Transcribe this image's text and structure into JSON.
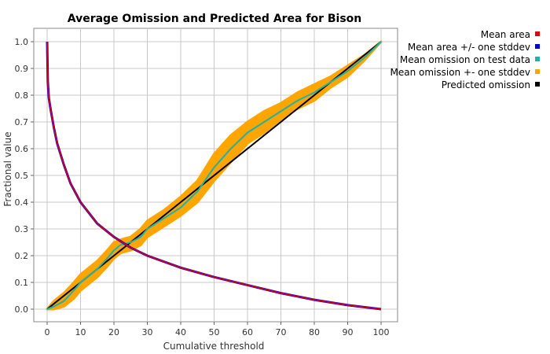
{
  "chart_data": {
    "type": "line",
    "title": "Average Omission and Predicted Area for Bison",
    "xlabel": "Cumulative threshold",
    "ylabel": "Fractional value",
    "xlim": [
      0,
      100
    ],
    "ylim": [
      0,
      1
    ],
    "xticks": [
      0,
      10,
      20,
      30,
      40,
      50,
      60,
      70,
      80,
      90,
      100
    ],
    "yticks": [
      0.0,
      0.1,
      0.2,
      0.3,
      0.4,
      0.5,
      0.6,
      0.7,
      0.8,
      0.9,
      1.0
    ],
    "grid": true,
    "legend_position": "right",
    "series": [
      {
        "name": "Mean area",
        "color": "#e8000b",
        "x": [
          0,
          0.2,
          0.5,
          1,
          2,
          3,
          5,
          7,
          10,
          15,
          20,
          25,
          30,
          40,
          50,
          60,
          70,
          80,
          90,
          100
        ],
        "y": [
          1.0,
          0.85,
          0.79,
          0.75,
          0.68,
          0.62,
          0.54,
          0.47,
          0.4,
          0.32,
          0.27,
          0.23,
          0.2,
          0.155,
          0.12,
          0.09,
          0.06,
          0.035,
          0.015,
          0.0
        ]
      },
      {
        "name": "Mean area +/- one stddev",
        "color": "#0000dd",
        "x": [
          0,
          0.2,
          0.5,
          1,
          2,
          3,
          5,
          7,
          10,
          15,
          20,
          25,
          30,
          40,
          50,
          60,
          70,
          80,
          90,
          100
        ],
        "y": [
          1.0,
          0.85,
          0.79,
          0.75,
          0.68,
          0.62,
          0.54,
          0.47,
          0.4,
          0.32,
          0.27,
          0.23,
          0.2,
          0.155,
          0.12,
          0.09,
          0.06,
          0.035,
          0.015,
          0.0
        ]
      },
      {
        "name": "Mean omission on test data",
        "color": "#20b2aa",
        "x": [
          0,
          2,
          5,
          8,
          10,
          12,
          15,
          18,
          20,
          22,
          25,
          28,
          30,
          35,
          40,
          45,
          50,
          55,
          60,
          65,
          70,
          75,
          80,
          85,
          90,
          95,
          100
        ],
        "y": [
          0.0,
          0.01,
          0.03,
          0.07,
          0.1,
          0.12,
          0.15,
          0.19,
          0.22,
          0.24,
          0.25,
          0.27,
          0.3,
          0.34,
          0.38,
          0.44,
          0.53,
          0.6,
          0.66,
          0.7,
          0.74,
          0.78,
          0.81,
          0.85,
          0.89,
          0.94,
          1.0
        ]
      },
      {
        "name": "Mean omission +- one stddev",
        "color": "#ffa500",
        "x": [
          0,
          2,
          5,
          8,
          10,
          12,
          15,
          18,
          20,
          22,
          25,
          28,
          30,
          35,
          40,
          45,
          50,
          55,
          60,
          65,
          70,
          75,
          80,
          85,
          90,
          95,
          100
        ],
        "y_lower": [
          0.0,
          0.0,
          0.01,
          0.04,
          0.07,
          0.09,
          0.12,
          0.16,
          0.19,
          0.21,
          0.22,
          0.24,
          0.27,
          0.31,
          0.35,
          0.4,
          0.48,
          0.55,
          0.62,
          0.66,
          0.71,
          0.75,
          0.78,
          0.83,
          0.87,
          0.93,
          1.0
        ],
        "y_upper": [
          0.0,
          0.03,
          0.06,
          0.1,
          0.13,
          0.15,
          0.18,
          0.22,
          0.25,
          0.26,
          0.27,
          0.3,
          0.33,
          0.37,
          0.42,
          0.48,
          0.58,
          0.65,
          0.7,
          0.74,
          0.77,
          0.81,
          0.84,
          0.87,
          0.91,
          0.95,
          1.0
        ]
      },
      {
        "name": "Predicted omission",
        "color": "#000000",
        "x": [
          0,
          100
        ],
        "y": [
          0,
          1
        ]
      }
    ]
  }
}
